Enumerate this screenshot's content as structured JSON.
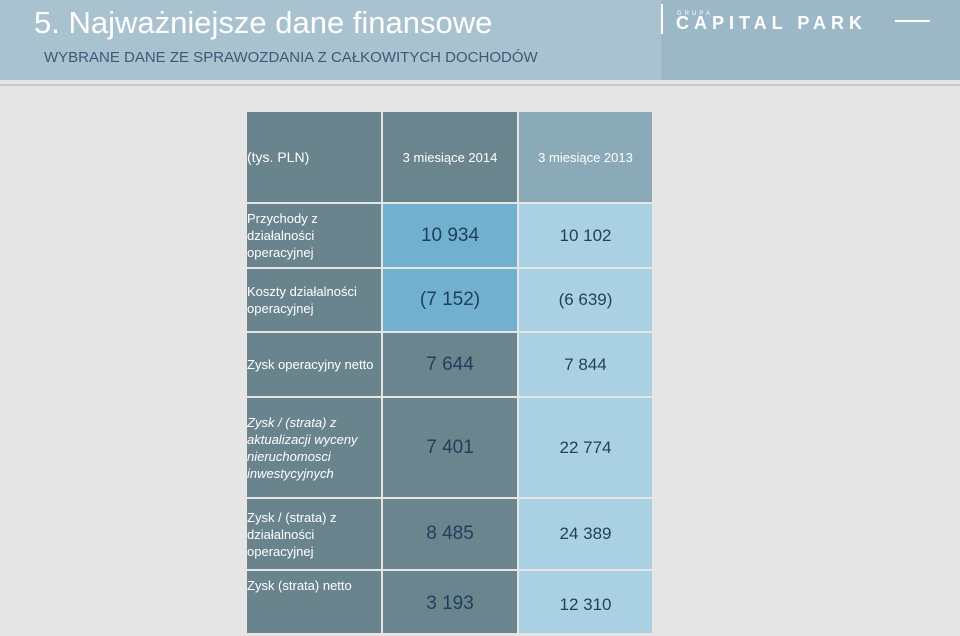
{
  "header": {
    "title": "5. Najważniejsze dane finansowe",
    "subtitle": "WYBRANE DANE ZE SPRAWOZDANIA  Z CAŁKOWITYCH DOCHODÓW",
    "logo_small": "GRUPA",
    "logo_name": "CAPITAL PARK"
  },
  "table": {
    "unit_label": "(tys. PLN)",
    "columns": [
      "3 miesiące 2014",
      "3 miesiące 2013"
    ],
    "rows": [
      {
        "label": "Przychody z działalności operacyjnej",
        "v2014": "10 934",
        "v2013": "10 102"
      },
      {
        "label": "Koszty działalności operacyjnej",
        "v2014": "(7 152)",
        "v2013": "(6 639)"
      },
      {
        "label": "Zysk operacyjny netto",
        "v2014": "7 644",
        "v2013": "7 844"
      },
      {
        "label": "Zysk / (strata) z aktualizacji wyceny nieruchomosci inwestycyjnych",
        "v2014": "7 401",
        "v2013": "22 774"
      },
      {
        "label": "Zysk / (strata) z działalności operacyjnej",
        "v2014": "8 485",
        "v2013": "24 389"
      },
      {
        "label": "Zysk (strata) netto",
        "v2014": "3 193",
        "v2013": "12 310"
      }
    ]
  }
}
